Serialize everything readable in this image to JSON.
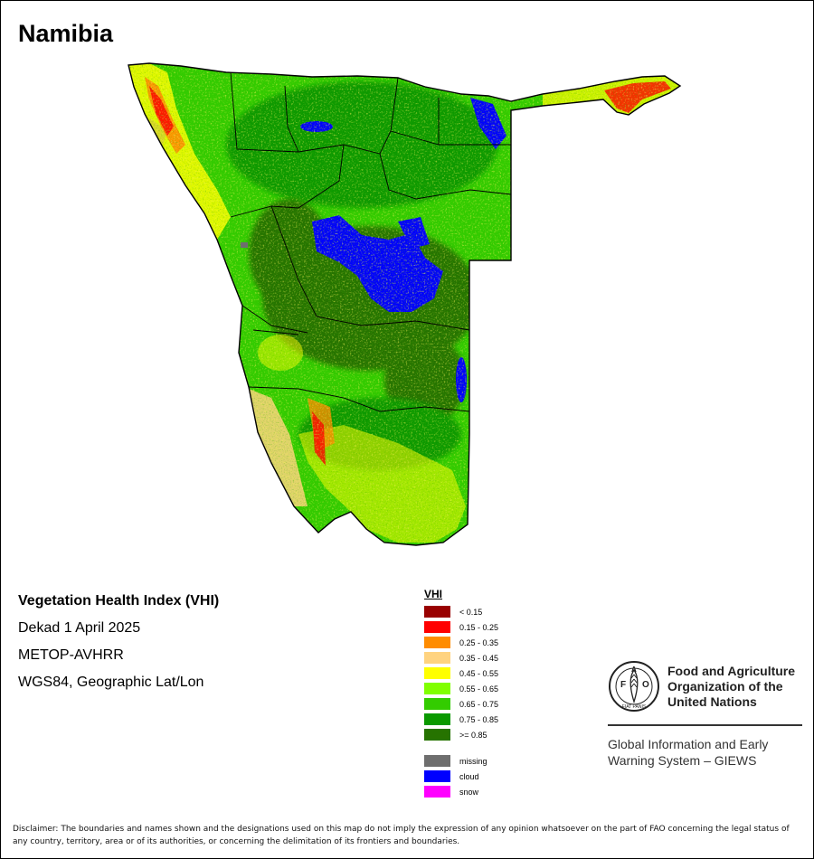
{
  "title": "Namibia",
  "info": {
    "index_name": "Vegetation Health Index (VHI)",
    "period": "Dekad 1 April 2025",
    "sensor": "METOP-AVHRR",
    "projection": "WGS84, Geographic Lat/Lon"
  },
  "legend": {
    "title": "VHI",
    "classes": [
      {
        "label": "< 0.15",
        "color": "#990000"
      },
      {
        "label": "0.15 - 0.25",
        "color": "#ff0000"
      },
      {
        "label": "0.25 - 0.35",
        "color": "#ff8c00"
      },
      {
        "label": "0.35 - 0.45",
        "color": "#ffd37f"
      },
      {
        "label": "0.45 - 0.55",
        "color": "#ffff00"
      },
      {
        "label": "0.55 - 0.65",
        "color": "#80ff00"
      },
      {
        "label": "0.65 - 0.75",
        "color": "#33cc00"
      },
      {
        "label": "0.75 - 0.85",
        "color": "#0a9900"
      },
      {
        "label": ">= 0.85",
        "color": "#267300"
      }
    ],
    "special": [
      {
        "label": "missing",
        "color": "#6e6e6e"
      },
      {
        "label": "cloud",
        "color": "#0000ff"
      },
      {
        "label": "snow",
        "color": "#ff00ff"
      }
    ]
  },
  "organization": {
    "name": "Food and Agriculture Organization of the United Nations",
    "emblem_text": "FIAT PANIS",
    "emblem_letters": "FAO",
    "system": "Global Information and Early Warning System – GIEWS"
  },
  "disclaimer": "Disclaimer: The boundaries and names shown and the designations used on this map do not imply the expression of any opinion whatsoever on the part of FAO concerning the legal status of any country, territory, area or of its authorities, or concerning the delimitation of its frontiers and boundaries."
}
